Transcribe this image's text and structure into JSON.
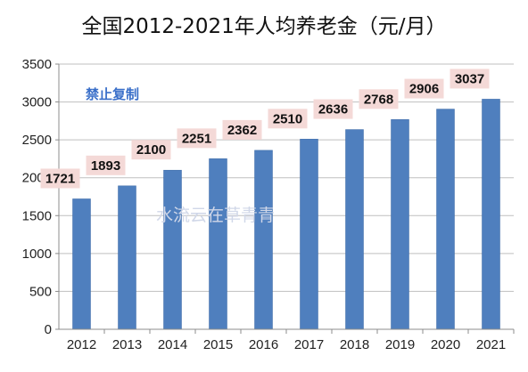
{
  "title": "全国2012-2021年人均养老金（元/月）",
  "annotations": {
    "notice": "禁止复制",
    "watermark": "水流云在草青青"
  },
  "colors": {
    "bar": "#4f7fbe",
    "bar_edge": "#3d6aa6",
    "label_bg": "#f4d9d7",
    "grid": "#bfbfbf",
    "axis": "#8c8c8c"
  },
  "chart_data": {
    "type": "bar",
    "title": "全国2012-2021年人均养老金（元/月）",
    "xlabel": "",
    "ylabel": "",
    "categories": [
      "2012",
      "2013",
      "2014",
      "2015",
      "2016",
      "2017",
      "2018",
      "2019",
      "2020",
      "2021"
    ],
    "values": [
      1721,
      1893,
      2100,
      2251,
      2362,
      2510,
      2636,
      2768,
      2906,
      3037
    ],
    "ylim": [
      0,
      3500
    ],
    "yticks": [
      0,
      500,
      1000,
      1500,
      2000,
      2500,
      3000,
      3500
    ],
    "grid": true,
    "legend": "none"
  }
}
